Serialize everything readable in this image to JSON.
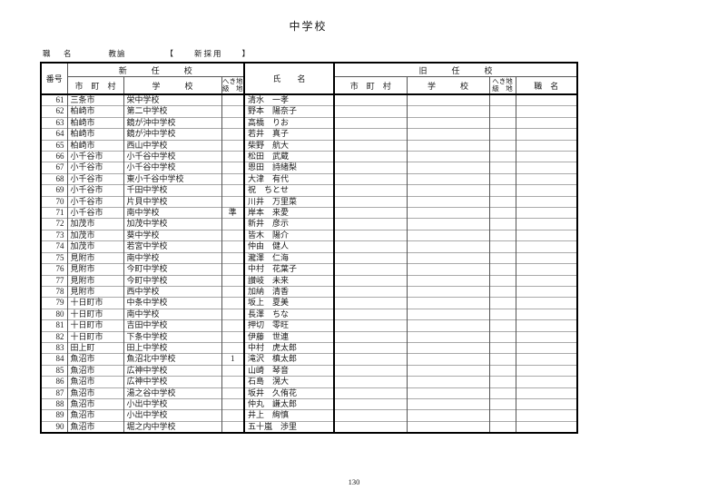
{
  "page": {
    "title": "中学校",
    "position_label": "職　名",
    "position_value": "教諭",
    "recruitment_type": "【　　新採用　　】",
    "page_number": "130"
  },
  "table": {
    "headers": {
      "number": "番号",
      "new_school_group": "新　　　任　　　校",
      "old_school_group": "旧　　　任　　　校",
      "municipality": "市　町　村",
      "school": "学　　　校",
      "remote_line1": "へき地",
      "remote_line2": "級　地",
      "name": "氏　　名",
      "old_title": "職　名"
    },
    "rows": [
      {
        "no": "61",
        "city": "三条市",
        "school": "栄中学校",
        "remote": "",
        "name": "清水　一孝",
        "old_city": "",
        "old_school": "",
        "old_remote": "",
        "old_title": ""
      },
      {
        "no": "62",
        "city": "柏崎市",
        "school": "第二中学校",
        "remote": "",
        "name": "野本　陽奈子",
        "old_city": "",
        "old_school": "",
        "old_remote": "",
        "old_title": ""
      },
      {
        "no": "63",
        "city": "柏崎市",
        "school": "鏡が沖中学校",
        "remote": "",
        "name": "高橋　りお",
        "old_city": "",
        "old_school": "",
        "old_remote": "",
        "old_title": ""
      },
      {
        "no": "64",
        "city": "柏崎市",
        "school": "鏡が沖中学校",
        "remote": "",
        "name": "若井　真子",
        "old_city": "",
        "old_school": "",
        "old_remote": "",
        "old_title": ""
      },
      {
        "no": "65",
        "city": "柏崎市",
        "school": "西山中学校",
        "remote": "",
        "name": "柴野　航大",
        "old_city": "",
        "old_school": "",
        "old_remote": "",
        "old_title": ""
      },
      {
        "no": "66",
        "city": "小千谷市",
        "school": "小千谷中学校",
        "remote": "",
        "name": "松田　武蔵",
        "old_city": "",
        "old_school": "",
        "old_remote": "",
        "old_title": ""
      },
      {
        "no": "67",
        "city": "小千谷市",
        "school": "小千谷中学校",
        "remote": "",
        "name": "恩田　詩緒梨",
        "old_city": "",
        "old_school": "",
        "old_remote": "",
        "old_title": ""
      },
      {
        "no": "68",
        "city": "小千谷市",
        "school": "東小千谷中学校",
        "remote": "",
        "name": "大津　有代",
        "old_city": "",
        "old_school": "",
        "old_remote": "",
        "old_title": ""
      },
      {
        "no": "69",
        "city": "小千谷市",
        "school": "千田中学校",
        "remote": "",
        "name": "祝　ちとせ",
        "old_city": "",
        "old_school": "",
        "old_remote": "",
        "old_title": ""
      },
      {
        "no": "70",
        "city": "小千谷市",
        "school": "片貝中学校",
        "remote": "",
        "name": "川井　万里菜",
        "old_city": "",
        "old_school": "",
        "old_remote": "",
        "old_title": ""
      },
      {
        "no": "71",
        "city": "小千谷市",
        "school": "南中学校",
        "remote": "準",
        "name": "岸本　来愛",
        "old_city": "",
        "old_school": "",
        "old_remote": "",
        "old_title": ""
      },
      {
        "no": "72",
        "city": "加茂市",
        "school": "加茂中学校",
        "remote": "",
        "name": "新井　彦示",
        "old_city": "",
        "old_school": "",
        "old_remote": "",
        "old_title": ""
      },
      {
        "no": "73",
        "city": "加茂市",
        "school": "葵中学校",
        "remote": "",
        "name": "皆木　陽介",
        "old_city": "",
        "old_school": "",
        "old_remote": "",
        "old_title": ""
      },
      {
        "no": "74",
        "city": "加茂市",
        "school": "若宮中学校",
        "remote": "",
        "name": "仲由　健人",
        "old_city": "",
        "old_school": "",
        "old_remote": "",
        "old_title": ""
      },
      {
        "no": "75",
        "city": "見附市",
        "school": "南中学校",
        "remote": "",
        "name": "瀧澤　仁海",
        "old_city": "",
        "old_school": "",
        "old_remote": "",
        "old_title": ""
      },
      {
        "no": "76",
        "city": "見附市",
        "school": "今町中学校",
        "remote": "",
        "name": "中村　花葉子",
        "old_city": "",
        "old_school": "",
        "old_remote": "",
        "old_title": ""
      },
      {
        "no": "77",
        "city": "見附市",
        "school": "今町中学校",
        "remote": "",
        "name": "讃岐　未来",
        "old_city": "",
        "old_school": "",
        "old_remote": "",
        "old_title": ""
      },
      {
        "no": "78",
        "city": "見附市",
        "school": "西中学校",
        "remote": "",
        "name": "加納　清香",
        "old_city": "",
        "old_school": "",
        "old_remote": "",
        "old_title": ""
      },
      {
        "no": "79",
        "city": "十日町市",
        "school": "中条中学校",
        "remote": "",
        "name": "坂上　夏美",
        "old_city": "",
        "old_school": "",
        "old_remote": "",
        "old_title": ""
      },
      {
        "no": "80",
        "city": "十日町市",
        "school": "南中学校",
        "remote": "",
        "name": "長澤　ちな",
        "old_city": "",
        "old_school": "",
        "old_remote": "",
        "old_title": ""
      },
      {
        "no": "81",
        "city": "十日町市",
        "school": "吉田中学校",
        "remote": "",
        "name": "押切　零旺",
        "old_city": "",
        "old_school": "",
        "old_remote": "",
        "old_title": ""
      },
      {
        "no": "82",
        "city": "十日町市",
        "school": "下条中学校",
        "remote": "",
        "name": "伊藤　世連",
        "old_city": "",
        "old_school": "",
        "old_remote": "",
        "old_title": ""
      },
      {
        "no": "83",
        "city": "田上町",
        "school": "田上中学校",
        "remote": "",
        "name": "中村　虎太郎",
        "old_city": "",
        "old_school": "",
        "old_remote": "",
        "old_title": ""
      },
      {
        "no": "84",
        "city": "魚沼市",
        "school": "魚沼北中学校",
        "remote": "1",
        "name": "滝沢　槙太郎",
        "old_city": "",
        "old_school": "",
        "old_remote": "",
        "old_title": ""
      },
      {
        "no": "85",
        "city": "魚沼市",
        "school": "広神中学校",
        "remote": "",
        "name": "山崎　琴音",
        "old_city": "",
        "old_school": "",
        "old_remote": "",
        "old_title": ""
      },
      {
        "no": "86",
        "city": "魚沼市",
        "school": "広神中学校",
        "remote": "",
        "name": "石島　滉大",
        "old_city": "",
        "old_school": "",
        "old_remote": "",
        "old_title": ""
      },
      {
        "no": "87",
        "city": "魚沼市",
        "school": "湯之谷中学校",
        "remote": "",
        "name": "坂井　久侑花",
        "old_city": "",
        "old_school": "",
        "old_remote": "",
        "old_title": ""
      },
      {
        "no": "88",
        "city": "魚沼市",
        "school": "小出中学校",
        "remote": "",
        "name": "仲丸　謙太郎",
        "old_city": "",
        "old_school": "",
        "old_remote": "",
        "old_title": ""
      },
      {
        "no": "89",
        "city": "魚沼市",
        "school": "小出中学校",
        "remote": "",
        "name": "井上　絢慎",
        "old_city": "",
        "old_school": "",
        "old_remote": "",
        "old_title": ""
      },
      {
        "no": "90",
        "city": "魚沼市",
        "school": "堀之内中学校",
        "remote": "",
        "name": "五十嵐　渉里",
        "old_city": "",
        "old_school": "",
        "old_remote": "",
        "old_title": ""
      }
    ]
  }
}
